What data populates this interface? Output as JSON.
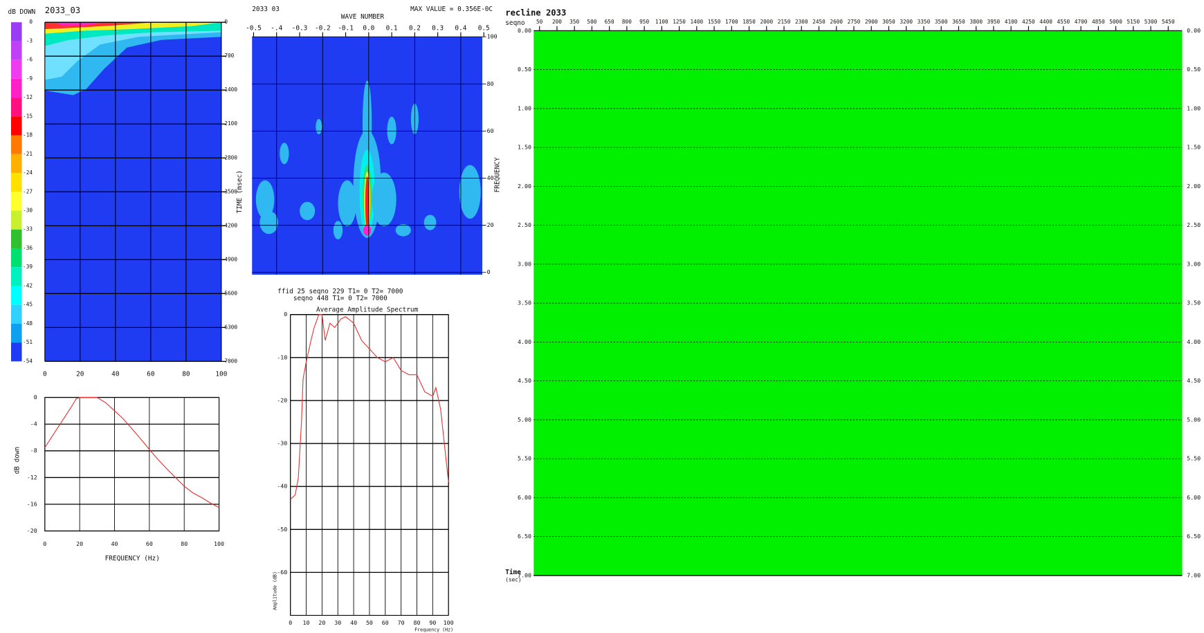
{
  "chart_data": [
    {
      "type": "heatmap",
      "title": "2033_03",
      "ylabel": "TIME (msec)",
      "background": "#1f3cf2",
      "xlim": [
        0,
        100
      ],
      "xticks": [
        0,
        20,
        40,
        60,
        80,
        100
      ],
      "ylim": [
        0,
        7000
      ],
      "yticks": [
        0,
        700,
        1400,
        2100,
        2800,
        3500,
        4200,
        4900,
        5600,
        6300,
        7000
      ],
      "colorbar": {
        "label": "dB DOWN",
        "ticks": [
          0,
          -3,
          -6,
          -9,
          -12,
          -15,
          -18,
          -21,
          -24,
          -27,
          -30,
          -33,
          -36,
          -39,
          -42,
          -45,
          -48,
          -51,
          -54
        ],
        "colors": [
          "#9b3cf5",
          "#c040f5",
          "#f03cf0",
          "#ff20c8",
          "#ff1080",
          "#ff0000",
          "#ff7a00",
          "#ffb000",
          "#ffe000",
          "#ffff30",
          "#c8f030",
          "#30c030",
          "#00e070",
          "#00f0c0",
          "#00ffff",
          "#30d0ff",
          "#10a0f0",
          "#1f3cf2"
        ]
      }
    },
    {
      "type": "line",
      "ylabel": "dB down",
      "xlabel": "FREQUENCY (Hz)",
      "xlim": [
        0,
        100
      ],
      "xticks": [
        0,
        20,
        40,
        60,
        80,
        100
      ],
      "ylim": [
        -20,
        0
      ],
      "yticks": [
        0,
        -4,
        -8,
        -12,
        -16,
        -20
      ],
      "x": [
        0,
        5,
        10,
        15,
        18,
        20,
        25,
        30,
        35,
        40,
        45,
        50,
        55,
        60,
        65,
        70,
        75,
        80,
        85,
        90,
        95,
        100
      ],
      "series": [
        {
          "color": "#e83030",
          "values": [
            -7.5,
            -5.5,
            -3.5,
            -1.5,
            -0.2,
            0,
            0,
            0,
            -0.8,
            -2,
            -3.2,
            -4.7,
            -6.2,
            -7.8,
            -9.3,
            -10.7,
            -12,
            -13.3,
            -14.3,
            -15,
            -15.8,
            -16.5
          ]
        }
      ]
    },
    {
      "type": "heatmap",
      "title": "2033 03",
      "xlabel": "WAVE NUMBER",
      "note": "MAX VALUE = 0.356E-0C",
      "ylabel": "FREQUENCY",
      "background": "#1f3cf2",
      "xlim": [
        -0.5,
        0.5
      ],
      "xticks": [
        -0.5,
        {
          "value": -0.4,
          "label": "-.4"
        },
        -0.3,
        -0.2,
        -0.1,
        {
          "value": 0,
          "label": "0.0"
        },
        0.1,
        0.2,
        0.3,
        0.4,
        0.5
      ],
      "ylim": [
        0,
        100
      ],
      "yticks": [
        0,
        20,
        40,
        60,
        80,
        100
      ]
    },
    {
      "type": "line",
      "subtitle": [
        "ffid 25 seqno 229 T1= 0 T2= 7000",
        "seqno 448 T1= 0 T2= 7000"
      ],
      "title": "Average Amplitude Spectrum",
      "ylabel": "Amplitude (dB)",
      "xlabel": "Frequency (Hz)",
      "xlim": [
        0,
        100
      ],
      "xticks": [
        0,
        10,
        20,
        30,
        40,
        50,
        60,
        70,
        80,
        90,
        100
      ],
      "ylim": [
        -70,
        0
      ],
      "yticks": [
        0,
        -10,
        -20,
        -30,
        -40,
        -50,
        -60
      ],
      "x": [
        0,
        3,
        5,
        7,
        8,
        10,
        13,
        15,
        18,
        20,
        22,
        25,
        28,
        32,
        35,
        40,
        45,
        50,
        55,
        60,
        65,
        70,
        75,
        80,
        85,
        90,
        92,
        95,
        100
      ],
      "series": [
        {
          "color": "#e83030",
          "values": [
            -43,
            -42,
            -38,
            -25,
            -15,
            -11,
            -6,
            -3,
            0,
            0,
            -6,
            -2,
            -3,
            -1,
            -0.5,
            -2,
            -6,
            -8,
            -10,
            -11,
            -10,
            -13,
            -14,
            -14,
            -18,
            -19,
            -17,
            -22,
            -39
          ]
        }
      ]
    },
    {
      "type": "seismic",
      "title": "recline 2033",
      "xlabel": "seqno",
      "ylabel": "Time",
      "yunit": "(sec)",
      "background": "#00f000",
      "xlim": [
        0,
        5570
      ],
      "xticks": [
        50,
        200,
        350,
        500,
        650,
        800,
        950,
        1100,
        1250,
        1400,
        1550,
        1700,
        1850,
        2000,
        2150,
        2300,
        2450,
        2600,
        2750,
        2900,
        3050,
        3200,
        3350,
        3500,
        3650,
        3800,
        3950,
        4100,
        4250,
        4400,
        4550,
        4700,
        4850,
        5000,
        5150,
        5300,
        5450
      ],
      "ylim": [
        0,
        7
      ],
      "yticks": [
        {
          "value": 0,
          "label": "0.00"
        },
        {
          "value": 0.5,
          "label": "0.50"
        },
        {
          "value": 1,
          "label": "1.00"
        },
        {
          "value": 1.5,
          "label": "1.50"
        },
        {
          "value": 2,
          "label": "2.00"
        },
        {
          "value": 2.5,
          "label": "2.50"
        },
        {
          "value": 3,
          "label": "3.00"
        },
        {
          "value": 3.5,
          "label": "3.50"
        },
        {
          "value": 4,
          "label": "4.00"
        },
        {
          "value": 4.5,
          "label": "4.50"
        },
        {
          "value": 5,
          "label": "5.00"
        },
        {
          "value": 5.5,
          "label": "5.50"
        },
        {
          "value": 6,
          "label": "6.00"
        },
        {
          "value": 6.5,
          "label": "6.50"
        },
        {
          "value": 7,
          "label": "7.00"
        }
      ]
    }
  ]
}
